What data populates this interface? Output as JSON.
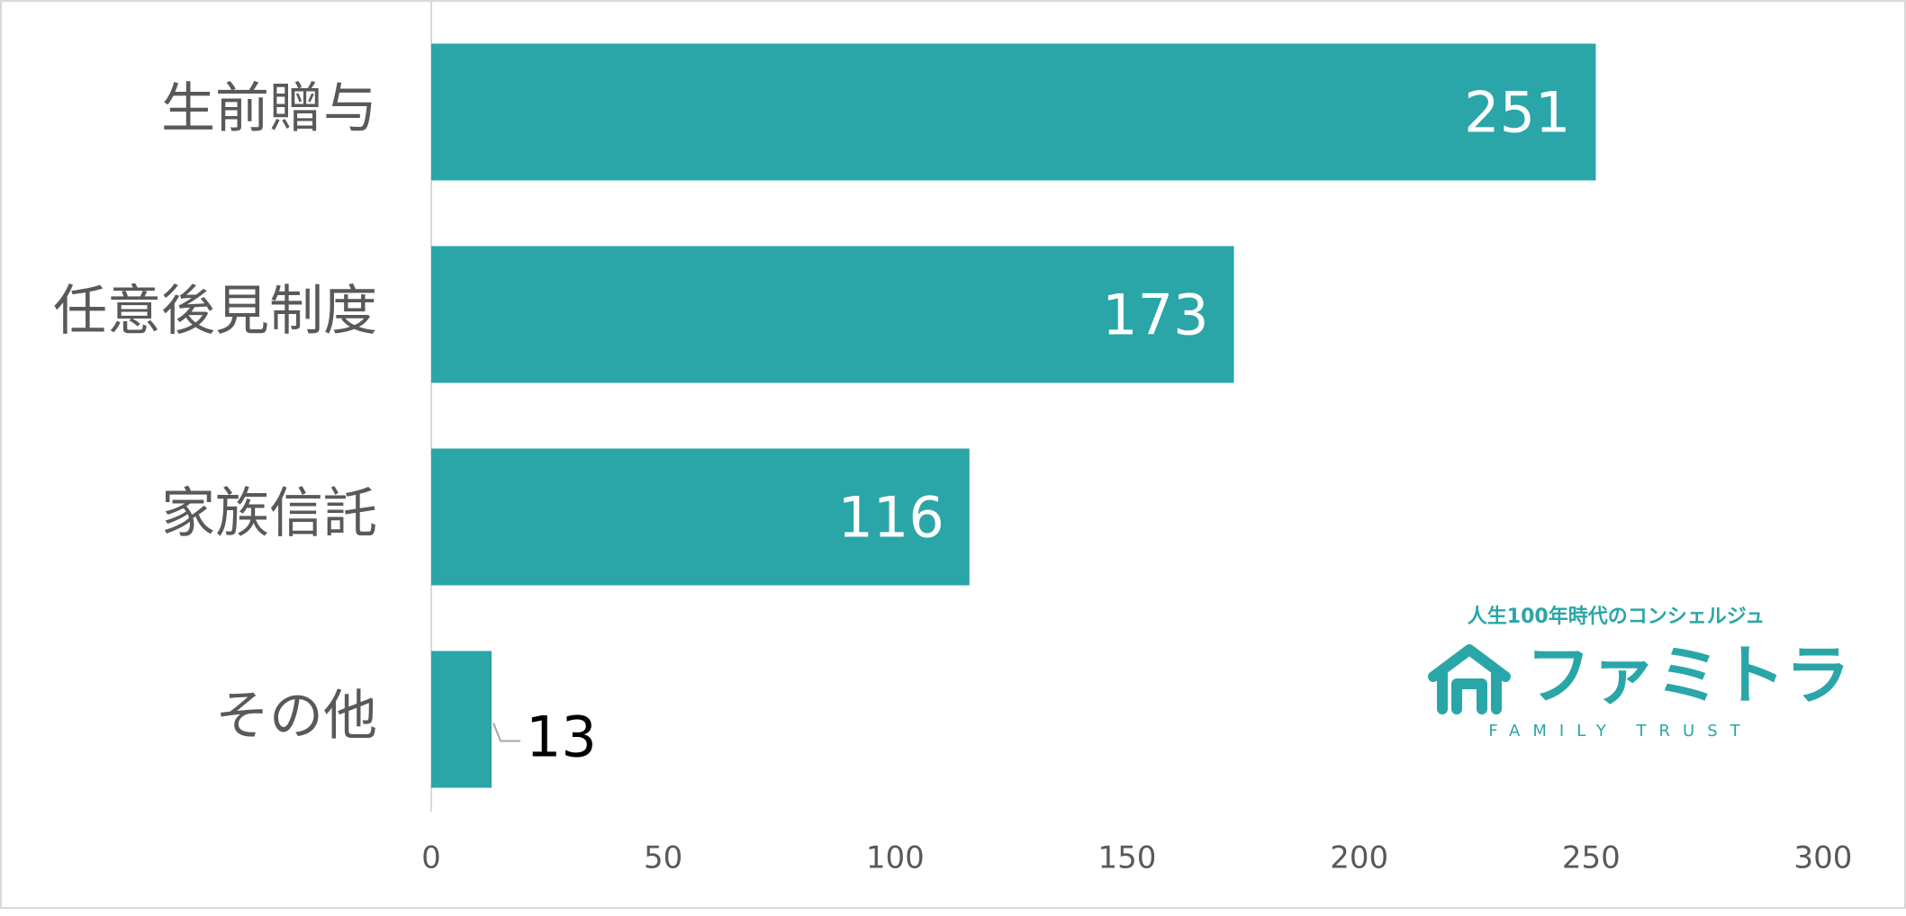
{
  "chart_data": {
    "type": "barh",
    "categories": [
      "生前贈与",
      "任意後見制度",
      "家族信託",
      "その他"
    ],
    "values": [
      251,
      173,
      116,
      13
    ],
    "color": "#2aa6a8",
    "xlim": [
      0,
      300
    ],
    "xticks": [
      0,
      50,
      100,
      150,
      200,
      250,
      300
    ],
    "grid": false
  },
  "logo": {
    "tagline": "人生100年時代のコンシェルジュ",
    "name": "ファミトラ",
    "subtitle": "FAMILY TRUST"
  }
}
